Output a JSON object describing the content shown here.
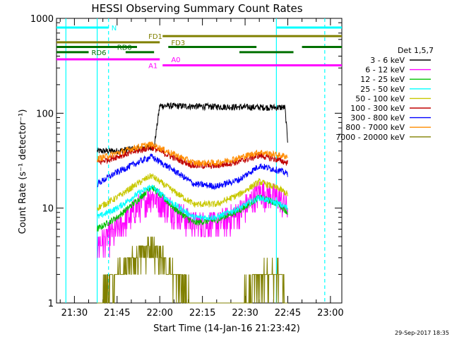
{
  "chart_data": {
    "type": "line",
    "title": "HESSI Observing Summary Count Rates",
    "xlabel": "Start Time (14-Jan-16 21:23:42)",
    "ylabel": "Count Rate (s⁻¹ detector⁻¹)",
    "y_scale": "log",
    "xlim": [
      "21:23:42",
      "23:04:00"
    ],
    "ylim": [
      1,
      1000
    ],
    "x_ticks": [
      "21:30",
      "21:45",
      "22:00",
      "22:15",
      "22:30",
      "22:45",
      "23:00"
    ],
    "y_ticks": [
      "1",
      "10",
      "100",
      "1000"
    ],
    "legend_title": "Det 1,5,7",
    "legend_position": "right",
    "data_range": [
      "21:38",
      "22:45"
    ],
    "series": [
      {
        "name": "3 - 6 keV",
        "color": "#000000",
        "x": [
          "21:38",
          "21:45",
          "21:50",
          "21:57",
          "21:58",
          "22:00",
          "22:15",
          "22:30",
          "22:44",
          "22:45"
        ],
        "values": [
          40,
          40,
          42,
          44,
          44,
          120,
          118,
          116,
          115,
          50
        ]
      },
      {
        "name": "6 - 12 keV",
        "color": "#ff00ff",
        "x": [
          "21:38",
          "21:45",
          "21:52",
          "21:57",
          "22:05",
          "22:12",
          "22:20",
          "22:28",
          "22:35",
          "22:42",
          "22:45"
        ],
        "values": [
          4,
          6,
          10,
          14,
          9.5,
          7,
          7,
          9,
          15,
          13,
          10
        ]
      },
      {
        "name": "12 - 25 keV",
        "color": "#00c000",
        "x": [
          "21:38",
          "21:45",
          "21:52",
          "21:57",
          "22:05",
          "22:12",
          "22:20",
          "22:28",
          "22:35",
          "22:42",
          "22:45"
        ],
        "values": [
          6,
          8,
          12,
          17,
          10,
          7,
          7.5,
          9.5,
          13,
          11,
          9
        ]
      },
      {
        "name": "25 - 50 keV",
        "color": "#00ffff",
        "x": [
          "21:38",
          "21:45",
          "21:52",
          "21:57",
          "22:05",
          "22:12",
          "22:20",
          "22:28",
          "22:35",
          "22:42",
          "22:45"
        ],
        "values": [
          8,
          10,
          14,
          17,
          11,
          8,
          8,
          10,
          13,
          11,
          10
        ]
      },
      {
        "name": "50 - 100 keV",
        "color": "#c8c800",
        "x": [
          "21:38",
          "21:45",
          "21:52",
          "21:57",
          "22:05",
          "22:12",
          "22:20",
          "22:28",
          "22:35",
          "22:42",
          "22:45"
        ],
        "values": [
          10,
          13,
          18,
          22,
          15,
          11,
          11,
          14,
          19,
          16,
          14
        ]
      },
      {
        "name": "100 - 300 keV",
        "color": "#c00000",
        "x": [
          "21:38",
          "21:45",
          "21:52",
          "21:57",
          "22:05",
          "22:12",
          "22:20",
          "22:28",
          "22:35",
          "22:42",
          "22:45"
        ],
        "values": [
          30,
          35,
          40,
          44,
          34,
          28,
          28,
          31,
          36,
          32,
          30
        ]
      },
      {
        "name": "300 - 800 keV",
        "color": "#0000ff",
        "x": [
          "21:38",
          "21:45",
          "21:52",
          "21:57",
          "22:05",
          "22:12",
          "22:20",
          "22:28",
          "22:35",
          "22:42",
          "22:45"
        ],
        "values": [
          18,
          24,
          30,
          35,
          25,
          18,
          17,
          20,
          28,
          25,
          23
        ]
      },
      {
        "name": "800 - 7000 keV",
        "color": "#ff8c00",
        "x": [
          "21:38",
          "21:45",
          "21:52",
          "21:57",
          "22:05",
          "22:12",
          "22:20",
          "22:28",
          "22:35",
          "22:42",
          "22:45"
        ],
        "values": [
          33,
          38,
          44,
          47,
          37,
          30,
          30,
          34,
          39,
          36,
          35
        ]
      },
      {
        "name": "7000 - 20000 keV",
        "color": "#808000",
        "x": [
          "21:38",
          "21:45",
          "21:52",
          "21:57",
          "22:05",
          "22:12",
          "22:20",
          "22:28",
          "22:35",
          "22:42",
          "22:45"
        ],
        "values": [
          1,
          2,
          3,
          4,
          2,
          1,
          1,
          1,
          2,
          2,
          1
        ]
      }
    ],
    "vertical_lines": [
      {
        "time": "21:27",
        "color": "#00ffff",
        "style": "solid"
      },
      {
        "time": "21:38",
        "color": "#00ffff",
        "style": "solid"
      },
      {
        "time": "21:42",
        "color": "#00ffff",
        "style": "dashed"
      },
      {
        "time": "22:41",
        "color": "#00ffff",
        "style": "solid"
      },
      {
        "time": "22:58",
        "color": "#00ffff",
        "style": "dashed"
      }
    ],
    "flag_bars": [
      {
        "label": "N",
        "color": "#00ffff",
        "row_y": 800,
        "segments": [
          [
            "21:23:42",
            "21:42"
          ],
          [
            "22:41",
            "23:04"
          ]
        ],
        "label_at": "21:43"
      },
      {
        "label": "FD1",
        "color": "#808000",
        "row_y": 650,
        "segments": [
          [
            "22:01",
            "23:04"
          ]
        ],
        "label_at": "21:56"
      },
      {
        "label": "FD3",
        "color": "#808000",
        "row_y": 560,
        "segments": [
          [
            "21:23:42",
            "22:00"
          ]
        ],
        "label_at": "22:04"
      },
      {
        "label": "RD0",
        "color": "#007000",
        "row_y": 500,
        "segments": [
          [
            "21:23:42",
            "21:52"
          ],
          [
            "22:03",
            "22:34"
          ],
          [
            "22:50",
            "23:04"
          ]
        ],
        "label_at": "21:45"
      },
      {
        "label": "RD6",
        "color": "#007000",
        "row_y": 440,
        "segments": [
          [
            "21:23:42",
            "21:35"
          ],
          [
            "21:48",
            "21:58"
          ],
          [
            "22:28",
            "22:47"
          ]
        ],
        "label_at": "21:36"
      },
      {
        "label": "A0",
        "color": "#ff00ff",
        "row_y": 370,
        "segments": [
          [
            "21:23:42",
            "22:00"
          ]
        ],
        "label_at": "22:04"
      },
      {
        "label": "A1",
        "color": "#ff00ff",
        "row_y": 320,
        "segments": [
          [
            "22:01",
            "23:04"
          ]
        ],
        "label_at": "21:56"
      }
    ]
  },
  "timestamp": "29-Sep-2017 18:35"
}
